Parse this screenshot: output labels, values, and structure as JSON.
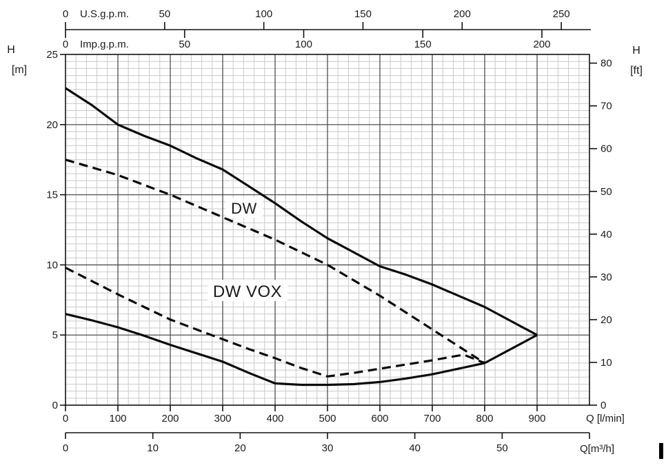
{
  "page": {
    "background": "#ffffff"
  },
  "chart_data": {
    "type": "line",
    "title": "",
    "description": "Pump performance envelope chart: head H versus flow Q for DW and DW VOX series",
    "axes": {
      "top_us": {
        "label": "U.S.g.p.m.",
        "ticks": [
          0,
          50,
          100,
          150,
          200,
          250
        ],
        "liters_per_unit": 3.785
      },
      "top_imp": {
        "label": "Imp.g.p.m.",
        "ticks": [
          0,
          50,
          100,
          150,
          200
        ],
        "liters_per_unit": 4.546
      },
      "bottom_lmin": {
        "label": "Q [l/min]",
        "ticks": [
          0,
          100,
          200,
          300,
          400,
          500,
          600,
          700,
          800,
          900
        ],
        "range": [
          0,
          1000
        ]
      },
      "bottom_m3h": {
        "label": "Q[m³/h]",
        "ticks": [
          0,
          10,
          20,
          30,
          40,
          50
        ],
        "liters_per_unit": 16.667
      },
      "left_m": {
        "unit_top": "H",
        "unit_bottom": "[m]",
        "ticks": [
          0,
          5,
          10,
          15,
          20,
          25
        ],
        "range": [
          0,
          25
        ]
      },
      "right_ft": {
        "unit_top": "H",
        "unit_bottom": "[ft]",
        "ticks": [
          0,
          10,
          20,
          30,
          40,
          50,
          60,
          70,
          80
        ],
        "meters_per_unit": 0.3048
      }
    },
    "grid": {
      "minor_step_lmin": 20,
      "minor_step_m": 0.5,
      "major_step_lmin": 100,
      "major_step_m": 5,
      "minor_color": "#c9c9c9",
      "major_color": "#4e4e4e"
    },
    "line_color": "#0a0a0a",
    "series": [
      {
        "name": "DW upper limit",
        "line": "solid",
        "points": [
          [
            0,
            22.6
          ],
          [
            50,
            21.4
          ],
          [
            100,
            20.0
          ],
          [
            150,
            19.2
          ],
          [
            200,
            18.5
          ],
          [
            250,
            17.6
          ],
          [
            300,
            16.8
          ],
          [
            350,
            15.6
          ],
          [
            400,
            14.4
          ],
          [
            450,
            13.1
          ],
          [
            500,
            11.9
          ],
          [
            550,
            10.9
          ],
          [
            600,
            9.9
          ],
          [
            650,
            9.3
          ],
          [
            700,
            8.6
          ],
          [
            750,
            7.8
          ],
          [
            800,
            7.0
          ],
          [
            850,
            6.0
          ],
          [
            900,
            5.0
          ]
        ]
      },
      {
        "name": "DW right boundary",
        "line": "solid",
        "points": [
          [
            900,
            5.0
          ],
          [
            800,
            3.0
          ]
        ]
      },
      {
        "name": "DW lower limit",
        "line": "solid",
        "points": [
          [
            800,
            3.0
          ],
          [
            750,
            2.6
          ],
          [
            700,
            2.2
          ],
          [
            650,
            1.9
          ],
          [
            600,
            1.65
          ],
          [
            550,
            1.5
          ],
          [
            500,
            1.45
          ],
          [
            450,
            1.45
          ],
          [
            400,
            1.55
          ],
          [
            350,
            2.3
          ],
          [
            300,
            3.1
          ],
          [
            250,
            3.7
          ],
          [
            200,
            4.3
          ],
          [
            150,
            4.95
          ],
          [
            100,
            5.55
          ],
          [
            50,
            6.05
          ],
          [
            0,
            6.5
          ]
        ]
      },
      {
        "name": "DW VOX upper limit",
        "line": "dashed",
        "points": [
          [
            0,
            17.5
          ],
          [
            50,
            16.95
          ],
          [
            100,
            16.4
          ],
          [
            150,
            15.7
          ],
          [
            200,
            15.0
          ],
          [
            250,
            14.2
          ],
          [
            300,
            13.4
          ],
          [
            350,
            12.6
          ],
          [
            400,
            11.8
          ],
          [
            450,
            10.9
          ],
          [
            500,
            10.0
          ],
          [
            550,
            8.9
          ],
          [
            600,
            7.8
          ],
          [
            650,
            6.6
          ],
          [
            700,
            5.4
          ],
          [
            750,
            4.2
          ],
          [
            800,
            3.0
          ]
        ]
      },
      {
        "name": "DW VOX lower limit",
        "line": "dashed",
        "points": [
          [
            0,
            9.8
          ],
          [
            50,
            8.85
          ],
          [
            100,
            7.9
          ],
          [
            150,
            7.0
          ],
          [
            200,
            6.1
          ],
          [
            250,
            5.4
          ],
          [
            300,
            4.7
          ],
          [
            350,
            4.0
          ],
          [
            400,
            3.35
          ],
          [
            450,
            2.65
          ],
          [
            500,
            2.05
          ],
          [
            550,
            2.3
          ],
          [
            600,
            2.6
          ],
          [
            650,
            2.9
          ],
          [
            700,
            3.2
          ],
          [
            760,
            3.6
          ],
          [
            800,
            3.0
          ]
        ]
      }
    ],
    "annotations": [
      {
        "text": "DW",
        "q": 339,
        "h": 14.0
      },
      {
        "text": "DW VOX",
        "q": 346,
        "h": 8.2
      }
    ]
  }
}
